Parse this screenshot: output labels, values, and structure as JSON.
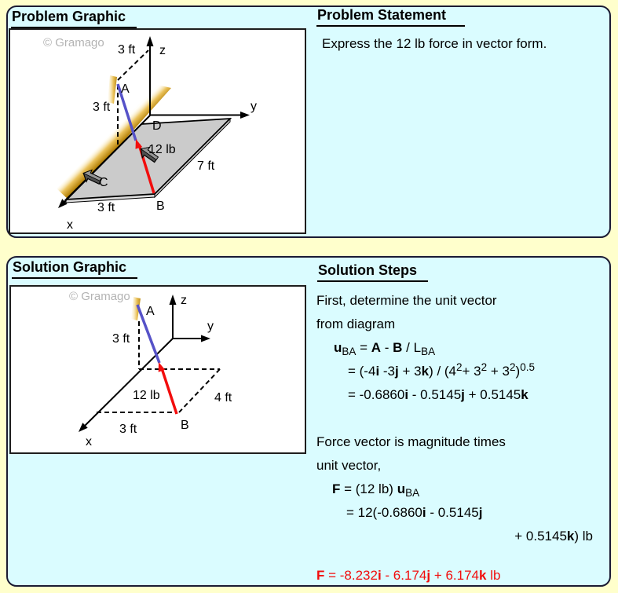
{
  "colors": {
    "page_bg": "#FFFFCC",
    "panel_bg": "#DAFCFF",
    "panel_border": "#1B1B33",
    "box_border": "#1E1E1E",
    "plate": "#CBCBCB",
    "plate_side": "#DDDDDD",
    "gold_dark": "#B5820A",
    "gold_mid": "#EBC35C",
    "gold_pale": "#FFFBEA",
    "blue": "#5652C8",
    "red": "#F20D0D",
    "gray_arrow": "#4F4F4F",
    "gray_arrow_light": "#979797",
    "watermark": "#B3B3B3",
    "ink": "#000000"
  },
  "problem": {
    "graphic_title": "Problem Graphic",
    "statement_title": "Problem Statement",
    "statement": "Express the 12 lb force in vector form.",
    "diagram": {
      "watermark": "© Gramago",
      "axis_x": "x",
      "axis_y": "y",
      "axis_z": "z",
      "point_a": "A",
      "point_b": "B",
      "point_c": "C",
      "point_d": "D",
      "dim_top": "3 ft",
      "dim_height": "3 ft",
      "dim_bottom": "3 ft",
      "dim_right": "7 ft",
      "force": "12 lb"
    }
  },
  "solution": {
    "graphic_title": "Solution Graphic",
    "steps_title": "Solution Steps",
    "diagram": {
      "watermark": "© Gramago",
      "axis_x": "x",
      "axis_y": "y",
      "axis_z": "z",
      "point_a": "A",
      "point_b": "B",
      "dim_height": "3 ft",
      "dim_bottom": "3 ft",
      "dim_right": "4 ft",
      "force": "12 lb"
    },
    "steps": [
      {
        "tokens": [
          {
            "t": "First, determine the unit vector"
          }
        ]
      },
      {
        "tokens": [
          {
            "t": "from diagram"
          }
        ]
      },
      {
        "indent": 22,
        "tokens": [
          {
            "b": "u"
          },
          {
            "sub": "BA"
          },
          {
            "t": " = "
          },
          {
            "b": "A"
          },
          {
            "t": " - "
          },
          {
            "b": "B"
          },
          {
            "t": " / L"
          },
          {
            "sub": "BA"
          }
        ]
      },
      {
        "indent": 40,
        "tokens": [
          {
            "t": "= (-4"
          },
          {
            "b": "i"
          },
          {
            "t": " -3"
          },
          {
            "b": "j"
          },
          {
            "t": " + 3"
          },
          {
            "b": "k"
          },
          {
            "t": ") / (4"
          },
          {
            "sup": "2"
          },
          {
            "t": "+ 3"
          },
          {
            "sup": "2"
          },
          {
            "t": " + 3"
          },
          {
            "sup": "2"
          },
          {
            "t": ")"
          },
          {
            "sup": "0.5"
          }
        ]
      },
      {
        "indent": 40,
        "tokens": [
          {
            "t": "= -0.6860"
          },
          {
            "b": "i"
          },
          {
            "t": " - 0.5145"
          },
          {
            "b": "j"
          },
          {
            "t": " + 0.5145"
          },
          {
            "b": "k"
          }
        ]
      },
      {
        "mt": 30,
        "tokens": [
          {
            "t": "Force vector is magnitude times"
          }
        ]
      },
      {
        "tokens": [
          {
            "t": "unit vector,"
          }
        ]
      },
      {
        "indent": 20,
        "tokens": [
          {
            "b": "F"
          },
          {
            "t": " = (12 lb) "
          },
          {
            "b": "u"
          },
          {
            "sub": "BA"
          }
        ]
      },
      {
        "indent": 38,
        "tokens": [
          {
            "t": "= 12(-0.6860"
          },
          {
            "b": "i"
          },
          {
            "t": " - 0.5145"
          },
          {
            "b": "j"
          }
        ]
      },
      {
        "align": "right",
        "tokens": [
          {
            "t": "+ 0.5145"
          },
          {
            "b": "k"
          },
          {
            "t": ") lb"
          }
        ]
      },
      {
        "mt": 20,
        "cls": "red",
        "tokens": [
          {
            "b": "F"
          },
          {
            "t": " = -8.232"
          },
          {
            "b": "i"
          },
          {
            "t": " - 6.174"
          },
          {
            "b": "j"
          },
          {
            "t": " + 6.174"
          },
          {
            "b": "k"
          },
          {
            "t": " lb"
          }
        ]
      }
    ]
  }
}
